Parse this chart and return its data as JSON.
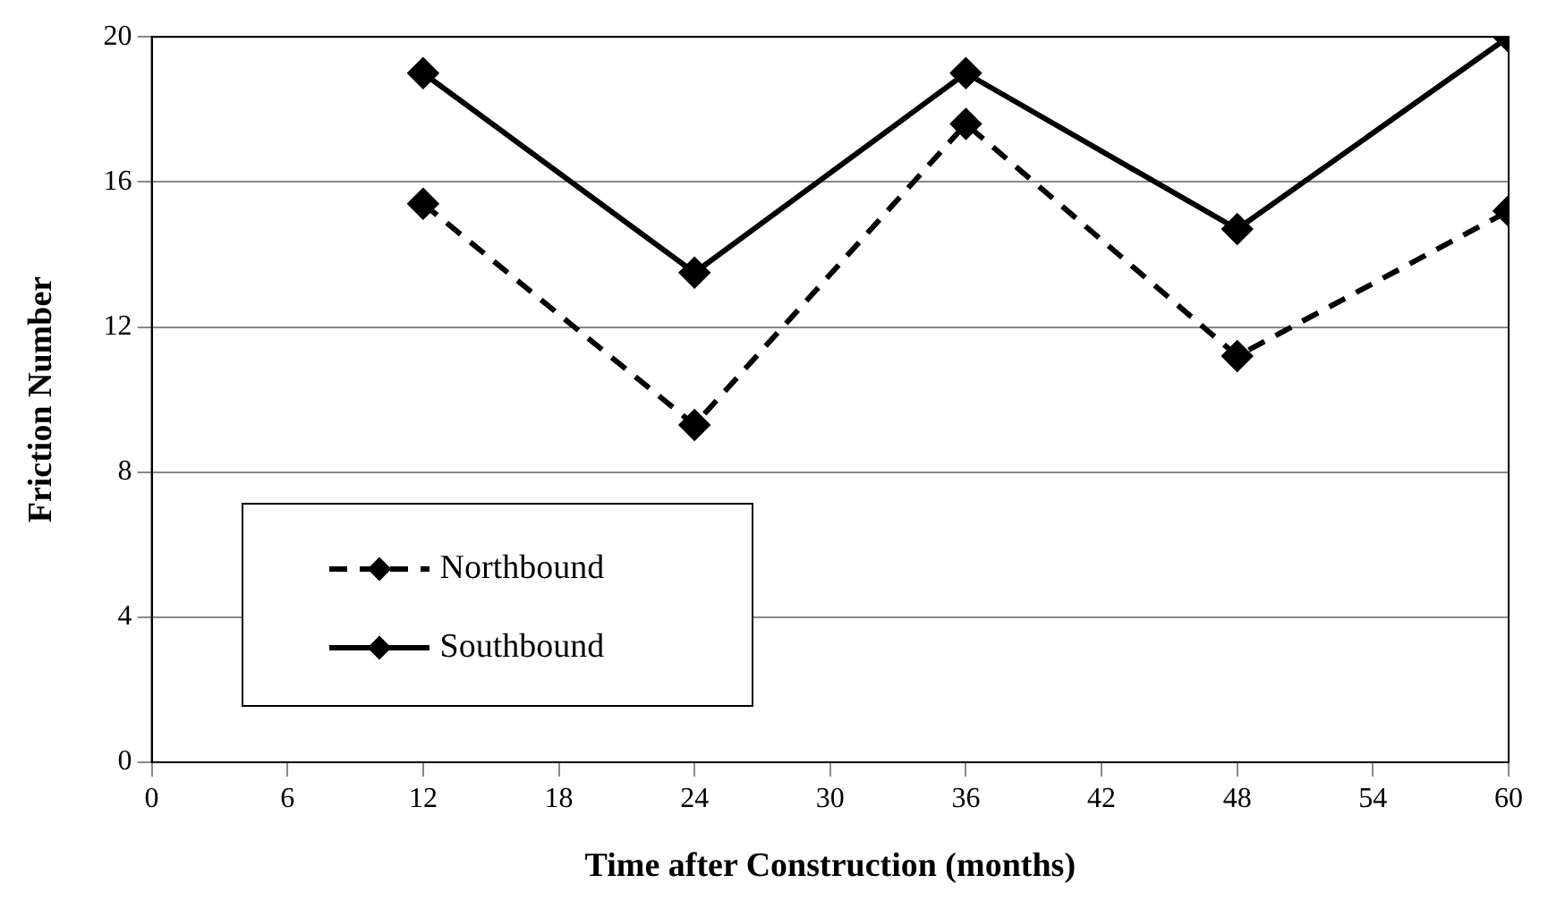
{
  "chart_data": {
    "type": "line",
    "xlabel": "Time after Construction (months)",
    "ylabel": "Friction Number",
    "x": [
      12,
      24,
      36,
      48,
      60
    ],
    "series": [
      {
        "name": "Northbound",
        "color": "#000000",
        "values": [
          15.4,
          9.3,
          17.6,
          11.2,
          15.2
        ],
        "line_style": "dashed"
      },
      {
        "name": "Southbound",
        "color": "#000000",
        "values": [
          19.0,
          13.5,
          19.0,
          14.7,
          20.0
        ],
        "line_style": "solid"
      }
    ],
    "xlim": [
      0,
      60
    ],
    "xticks": [
      0,
      6,
      12,
      18,
      24,
      30,
      36,
      42,
      48,
      54,
      60
    ],
    "ylim": [
      0,
      20
    ],
    "yticks": [
      0,
      4,
      8,
      12,
      16,
      20
    ],
    "grid": "y",
    "legend": "bottom left",
    "marker": "diamond"
  }
}
